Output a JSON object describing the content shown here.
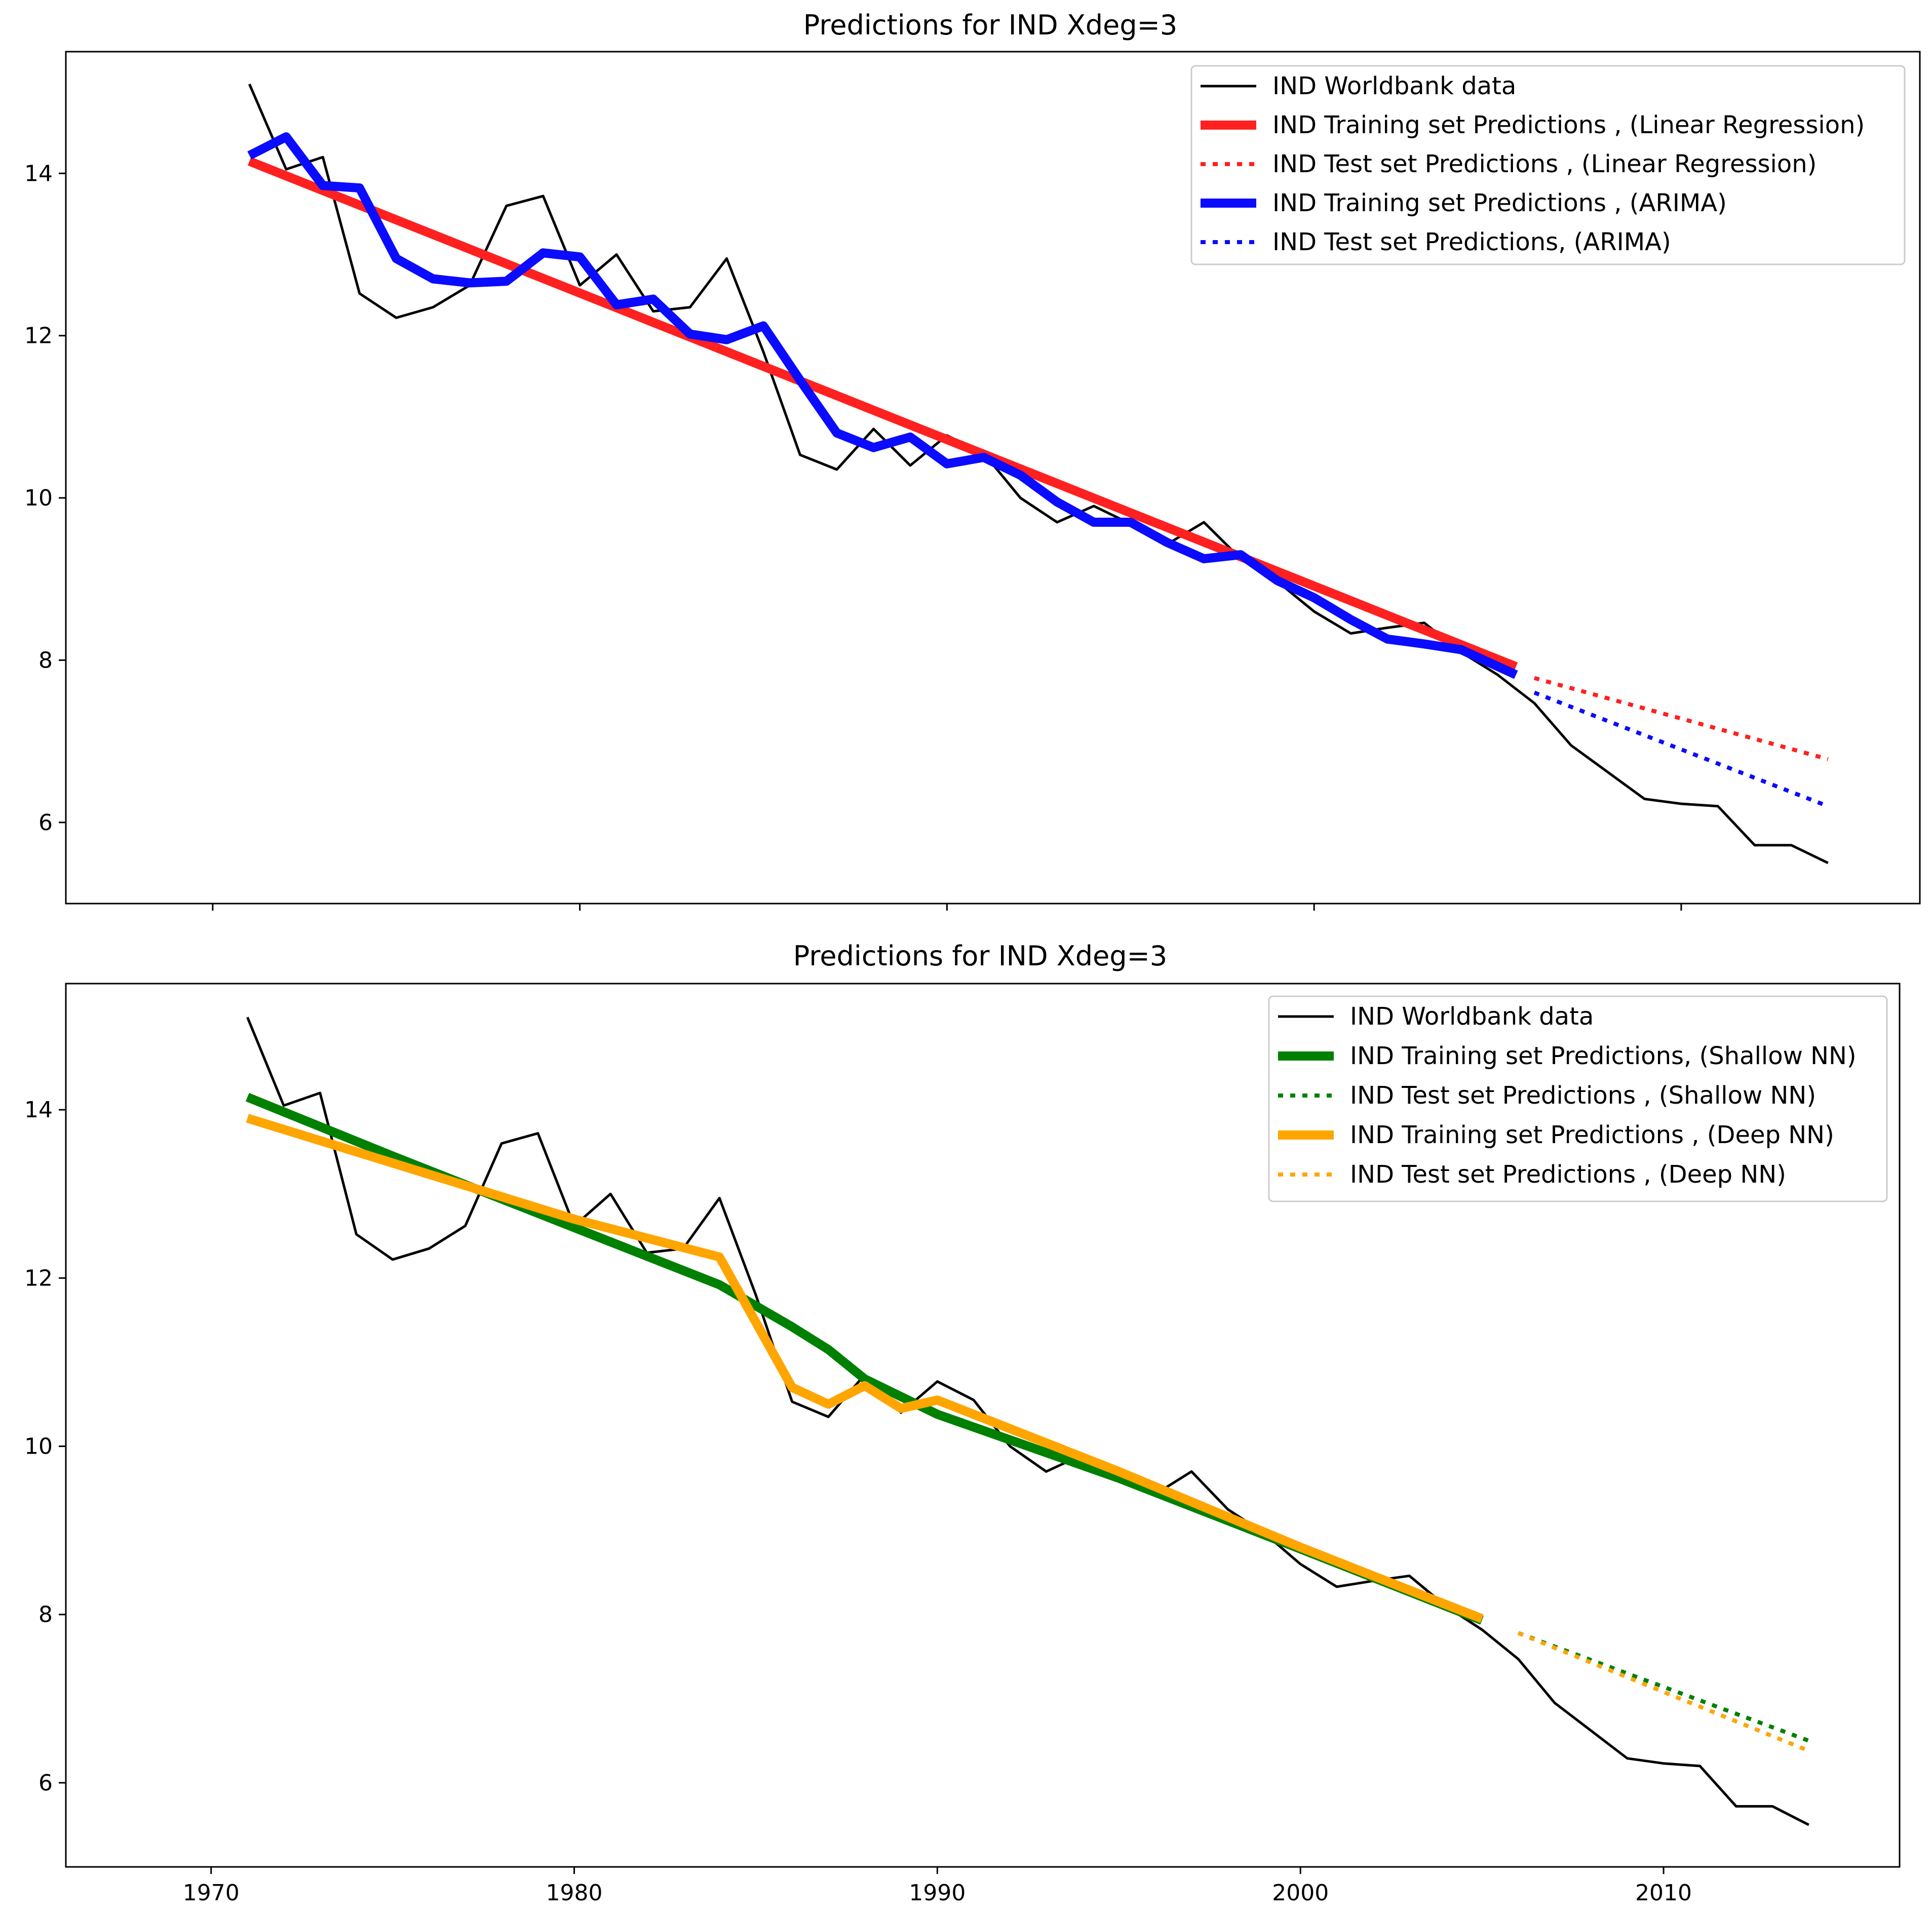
{
  "chart_data": [
    {
      "type": "line",
      "title": "Predictions for IND  Xdeg=3",
      "xlabel": "",
      "ylabel": "",
      "xlim": [
        1966,
        2016.5
      ],
      "ylim": [
        5.0,
        15.5
      ],
      "xticks": [
        1970,
        1980,
        1990,
        2000,
        2010
      ],
      "show_xtick_labels": false,
      "yticks": [
        6,
        8,
        10,
        12,
        14
      ],
      "ytick_labels": [
        "6",
        "8",
        "10",
        "12",
        "14"
      ],
      "grid": false,
      "legend_position": "top-right",
      "series": [
        {
          "name": "IND Worldbank data",
          "color": "#000000",
          "width": 5,
          "style": "solid",
          "x": [
            1971,
            1972,
            1973,
            1974,
            1975,
            1976,
            1977,
            1978,
            1979,
            1980,
            1981,
            1982,
            1983,
            1984,
            1985,
            1986,
            1987,
            1988,
            1989,
            1990,
            1991,
            1992,
            1993,
            1994,
            1995,
            1996,
            1997,
            1998,
            1999,
            2000,
            2001,
            2002,
            2003,
            2004,
            2005,
            2006,
            2007,
            2008,
            2009,
            2010,
            2011,
            2012,
            2013,
            2014
          ],
          "y": [
            15.1,
            14.05,
            14.2,
            12.52,
            12.22,
            12.35,
            12.62,
            13.6,
            13.72,
            12.62,
            13.0,
            12.3,
            12.35,
            12.95,
            11.8,
            10.53,
            10.35,
            10.85,
            10.4,
            10.77,
            10.55,
            10.0,
            9.7,
            9.9,
            9.68,
            9.43,
            9.7,
            9.25,
            8.97,
            8.6,
            8.33,
            8.4,
            8.46,
            8.1,
            7.82,
            7.47,
            6.95,
            6.62,
            6.29,
            6.23,
            6.2,
            5.72,
            5.72,
            5.5
          ]
        },
        {
          "name": "IND Training set Predictions , (Linear Regression)",
          "color": "#ff2020",
          "width": 18,
          "style": "solid",
          "x": [
            1971,
            2005.5
          ],
          "y": [
            14.15,
            7.92
          ]
        },
        {
          "name": "IND Test set Predictions , (Linear Regression)",
          "color": "#ff2020",
          "width": 8,
          "style": "dotted",
          "x": [
            2006,
            2014
          ],
          "y": [
            7.78,
            6.78
          ]
        },
        {
          "name": "IND Training set Predictions , (ARIMA)",
          "color": "#0b0bff",
          "width": 18,
          "style": "solid",
          "x": [
            1971,
            1972,
            1973,
            1974,
            1975,
            1976,
            1977,
            1978,
            1979,
            1980,
            1981,
            1982,
            1983,
            1984,
            1985,
            1986,
            1987,
            1988,
            1989,
            1990,
            1991,
            1992,
            1993,
            1994,
            1995,
            1996,
            1997,
            1998,
            1999,
            2000,
            2001,
            2002,
            2003,
            2004,
            2005.5
          ],
          "y": [
            14.22,
            14.45,
            13.85,
            13.82,
            12.95,
            12.7,
            12.65,
            12.67,
            13.02,
            12.97,
            12.38,
            12.45,
            12.02,
            11.95,
            12.12,
            11.45,
            10.8,
            10.62,
            10.75,
            10.42,
            10.5,
            10.28,
            9.95,
            9.7,
            9.7,
            9.45,
            9.25,
            9.3,
            8.98,
            8.77,
            8.5,
            8.26,
            8.2,
            8.13,
            7.82
          ]
        },
        {
          "name": "IND Test set Predictions, (ARIMA)",
          "color": "#0b0bff",
          "width": 8,
          "style": "dotted",
          "x": [
            2006,
            2014
          ],
          "y": [
            7.6,
            6.2
          ]
        }
      ]
    },
    {
      "type": "line",
      "title": "Predictions for IND  Xdeg=3",
      "xlabel": "",
      "ylabel": "",
      "xlim": [
        1966,
        2016.5
      ],
      "ylim": [
        5.0,
        15.5
      ],
      "xticks": [
        1970,
        1980,
        1990,
        2000,
        2010
      ],
      "xtick_labels": [
        "1970",
        "1980",
        "1990",
        "2000",
        "2010"
      ],
      "show_xtick_labels": true,
      "yticks": [
        6,
        8,
        10,
        12,
        14
      ],
      "ytick_labels": [
        "6",
        "8",
        "10",
        "12",
        "14"
      ],
      "grid": false,
      "legend_position": "top-right",
      "series": [
        {
          "name": "IND Worldbank data",
          "color": "#000000",
          "width": 5,
          "style": "solid",
          "x": [
            1971,
            1972,
            1973,
            1974,
            1975,
            1976,
            1977,
            1978,
            1979,
            1980,
            1981,
            1982,
            1983,
            1984,
            1985,
            1986,
            1987,
            1988,
            1989,
            1990,
            1991,
            1992,
            1993,
            1994,
            1995,
            1996,
            1997,
            1998,
            1999,
            2000,
            2001,
            2002,
            2003,
            2004,
            2005,
            2006,
            2007,
            2008,
            2009,
            2010,
            2011,
            2012,
            2013,
            2014
          ],
          "y": [
            15.1,
            14.05,
            14.2,
            12.52,
            12.22,
            12.35,
            12.62,
            13.6,
            13.72,
            12.62,
            13.0,
            12.3,
            12.35,
            12.95,
            11.8,
            10.53,
            10.35,
            10.85,
            10.4,
            10.77,
            10.55,
            10.0,
            9.7,
            9.9,
            9.68,
            9.43,
            9.7,
            9.25,
            8.97,
            8.6,
            8.33,
            8.4,
            8.46,
            8.1,
            7.82,
            7.47,
            6.95,
            6.62,
            6.29,
            6.23,
            6.2,
            5.72,
            5.72,
            5.5
          ]
        },
        {
          "name": "IND Training set Predictions, (Shallow NN)",
          "color": "#008000",
          "width": 18,
          "style": "solid",
          "x": [
            1971,
            1975,
            1980,
            1984,
            1986,
            1987,
            1988,
            1990,
            1995,
            2000,
            2005
          ],
          "y": [
            14.15,
            13.45,
            12.6,
            11.92,
            11.42,
            11.15,
            10.8,
            10.38,
            9.62,
            8.78,
            7.93
          ]
        },
        {
          "name": "IND Test set Predictions , (Shallow NN)",
          "color": "#008000",
          "width": 8,
          "style": "dotted",
          "x": [
            2006,
            2014
          ],
          "y": [
            7.78,
            6.5
          ]
        },
        {
          "name": "IND Training set Predictions , (Deep NN)",
          "color": "#ffa500",
          "width": 18,
          "style": "solid",
          "x": [
            1971,
            1977,
            1980,
            1984,
            1986,
            1987,
            1988,
            1989,
            1990,
            1995,
            2000,
            2005
          ],
          "y": [
            13.9,
            13.1,
            12.7,
            12.25,
            10.7,
            10.5,
            10.72,
            10.45,
            10.55,
            9.7,
            8.8,
            7.95
          ]
        },
        {
          "name": "IND Test set Predictions , (Deep NN)",
          "color": "#ffa500",
          "width": 8,
          "style": "dotted",
          "x": [
            2006,
            2014
          ],
          "y": [
            7.78,
            6.38
          ]
        }
      ]
    }
  ]
}
